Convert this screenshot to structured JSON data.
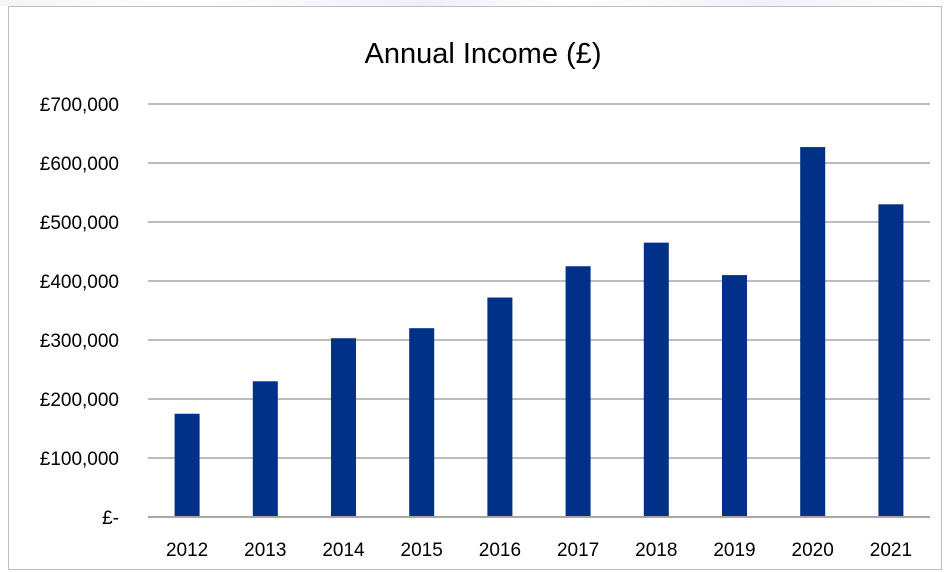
{
  "chart_data": {
    "type": "bar",
    "title": "Annual Income (£)",
    "xlabel": "",
    "ylabel": "",
    "categories": [
      "2012",
      "2013",
      "2014",
      "2015",
      "2016",
      "2017",
      "2018",
      "2019",
      "2020",
      "2021"
    ],
    "values": [
      175000,
      230000,
      303000,
      320000,
      372000,
      425000,
      465000,
      410000,
      627000,
      530000
    ],
    "ylim": [
      0,
      700000
    ],
    "yticks": [
      0,
      100000,
      200000,
      300000,
      400000,
      500000,
      600000,
      700000
    ],
    "ytick_labels": [
      "£-",
      "£100,000",
      "£200,000",
      "£300,000",
      "£400,000",
      "£500,000",
      "£600,000",
      "£700,000"
    ],
    "grid": true,
    "legend": "none",
    "bar_color": "#003087",
    "grid_color": "#a6a6a6"
  }
}
